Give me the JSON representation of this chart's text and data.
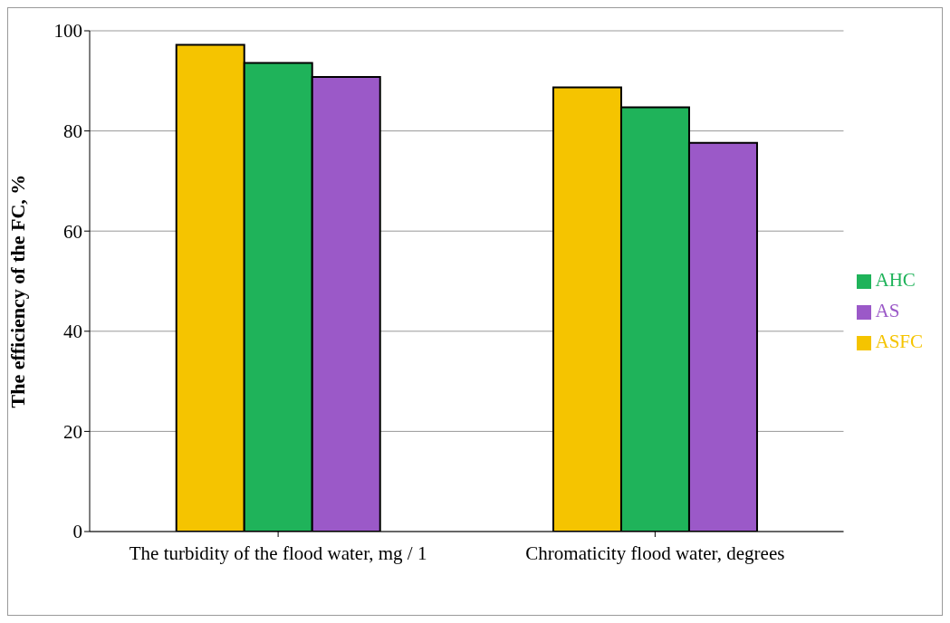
{
  "chart_data": {
    "type": "bar",
    "ylabel": "The efficiency of the FC, %",
    "categories": [
      "The turbidity of the flood water, mg / 1",
      "Chromaticity flood water, degrees"
    ],
    "series": [
      {
        "name": "ASFC",
        "color": "#f5c400",
        "values": [
          97.2,
          88.7
        ]
      },
      {
        "name": "AHC",
        "color": "#1fb35a",
        "values": [
          93.6,
          84.7
        ]
      },
      {
        "name": "AS",
        "color": "#9b59c8",
        "values": [
          90.8,
          77.6
        ]
      }
    ],
    "ylim": [
      0,
      100
    ],
    "yticks": [
      0,
      20,
      40,
      60,
      80,
      100
    ],
    "grid": "y",
    "legend": "right"
  }
}
